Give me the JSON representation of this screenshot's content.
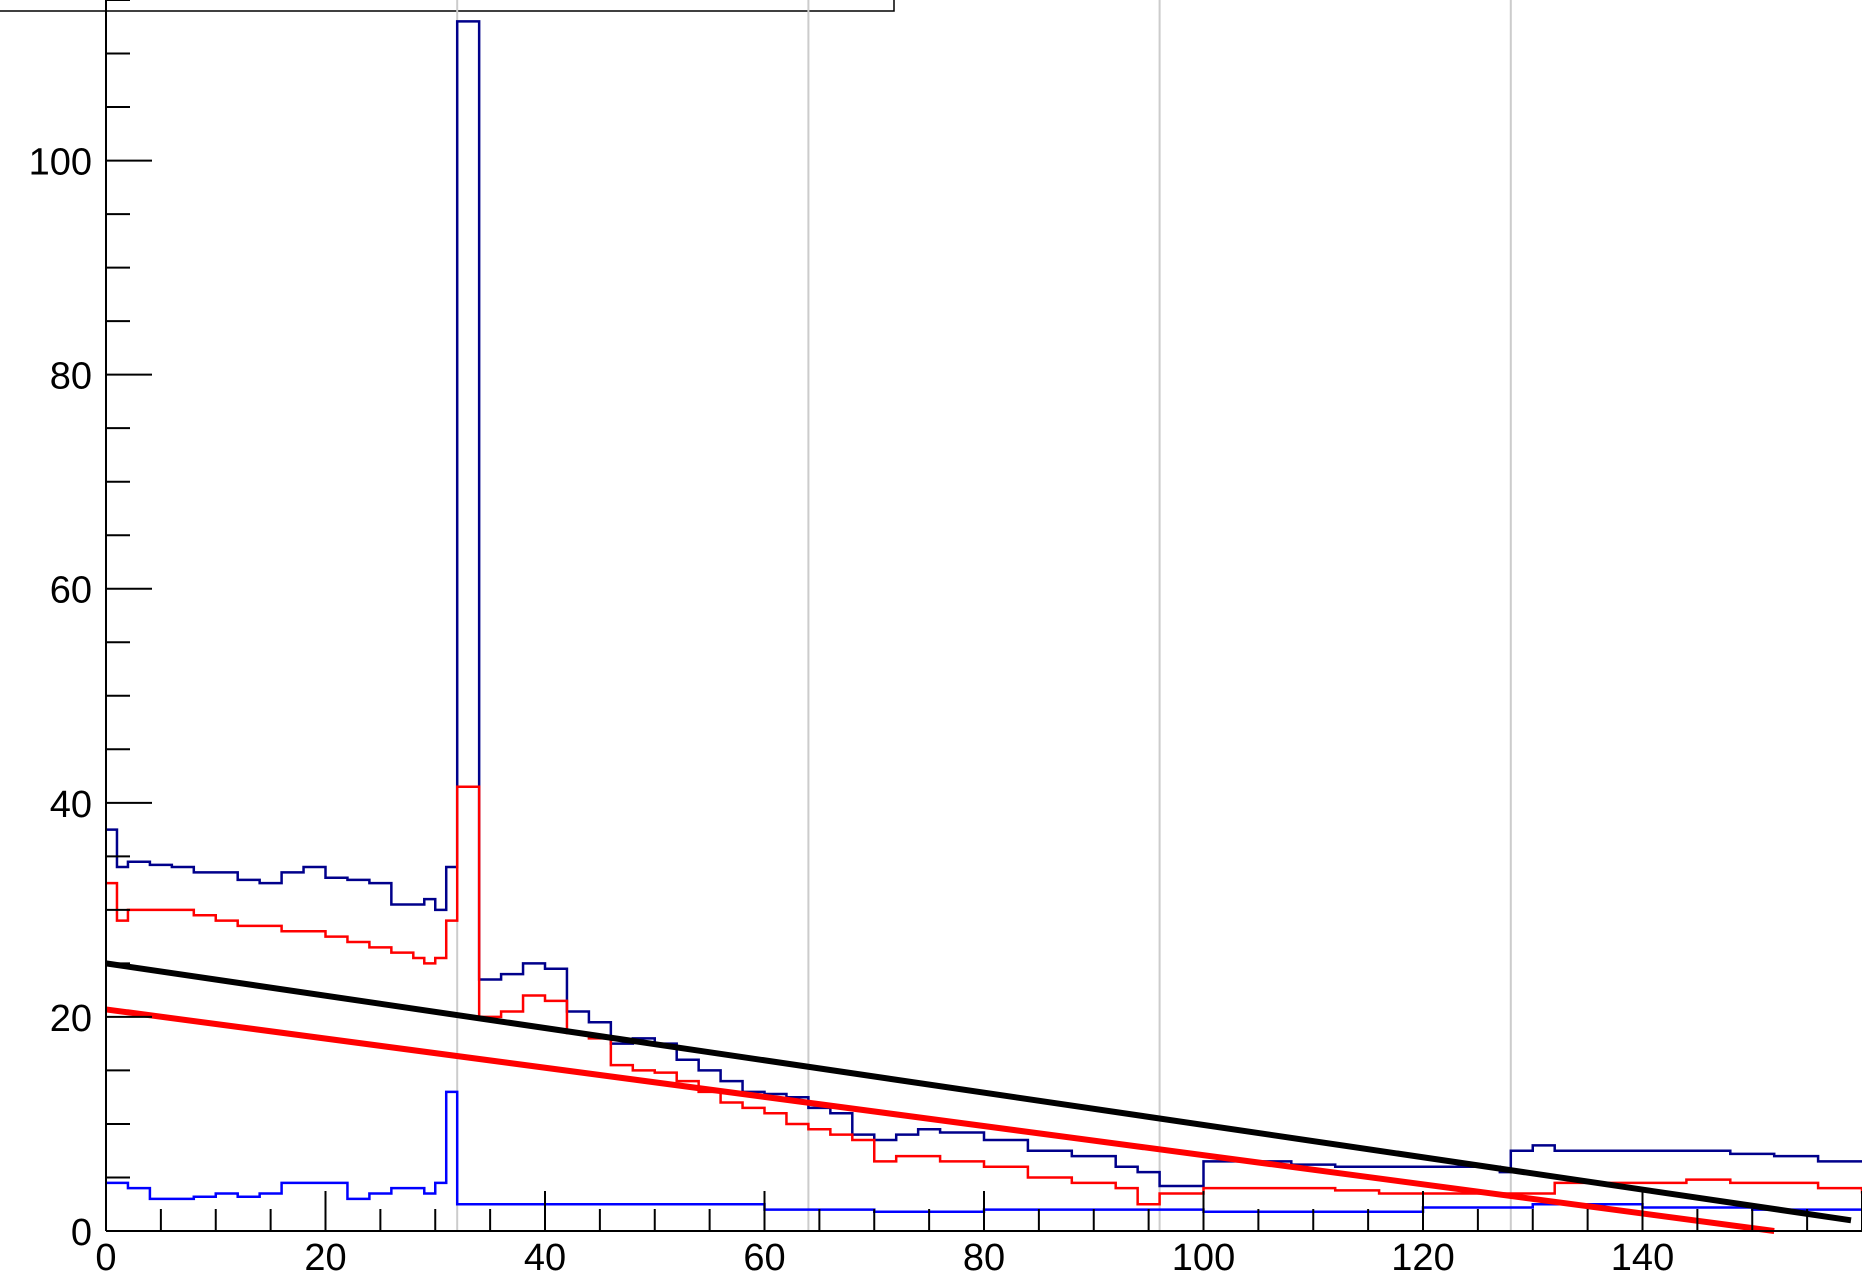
{
  "chart_data": {
    "type": "line",
    "title": "",
    "xlabel": "",
    "ylabel": "",
    "xlim": [
      0,
      160
    ],
    "ylim": [
      0,
      115
    ],
    "x_ticks": [
      0,
      20,
      40,
      60,
      80,
      100,
      120,
      140
    ],
    "x_tick_labels": [
      "0",
      "20",
      "40",
      "60",
      "80",
      "100",
      "120",
      "140"
    ],
    "y_ticks": [
      0,
      20,
      40,
      60,
      80,
      100
    ],
    "y_tick_labels": [
      "0",
      "20",
      "40",
      "60",
      "80",
      "100"
    ],
    "vertical_gridlines": [
      32,
      64,
      96,
      128
    ],
    "colors": {
      "dark_blue": "#00008b",
      "blue": "#0000ff",
      "red": "#ff0000",
      "black": "#000000",
      "grid": "#cccccc"
    },
    "series": [
      {
        "style": "step",
        "color": "#00008b",
        "x": [
          0,
          1,
          2,
          4,
          6,
          8,
          10,
          12,
          14,
          16,
          18,
          20,
          22,
          24,
          26,
          28,
          29,
          30,
          31,
          32,
          34,
          36,
          38,
          40,
          42,
          44,
          46,
          48,
          50,
          52,
          54,
          56,
          58,
          60,
          62,
          64,
          66,
          68,
          70,
          72,
          74,
          76,
          80,
          84,
          88,
          92,
          94,
          96,
          100,
          104,
          108,
          112,
          116,
          120,
          124,
          127,
          128,
          130,
          132,
          136,
          140,
          144,
          148,
          152,
          156,
          160
        ],
        "y": [
          37.5,
          34,
          34.5,
          34.2,
          34,
          33.5,
          33.5,
          32.8,
          32.5,
          33.5,
          34,
          33,
          32.8,
          32.5,
          30.5,
          30.5,
          31,
          30,
          34,
          113,
          23.5,
          24,
          25,
          24.5,
          20.5,
          19.5,
          17.5,
          18,
          17.5,
          16,
          15,
          14,
          13,
          12.8,
          12.5,
          11.5,
          11,
          9,
          8.5,
          9,
          9.5,
          9.2,
          8.5,
          7.5,
          7,
          6,
          5.5,
          4.2,
          6.5,
          6.5,
          6.2,
          6,
          6,
          6,
          6,
          5.5,
          7.5,
          8,
          7.5,
          7.5,
          7.5,
          7.5,
          7.2,
          7,
          6.5,
          6.5
        ]
      },
      {
        "style": "step",
        "color": "#ff0000",
        "x": [
          0,
          1,
          2,
          4,
          6,
          8,
          10,
          12,
          14,
          16,
          18,
          20,
          22,
          24,
          26,
          28,
          29,
          30,
          31,
          32,
          34,
          36,
          38,
          40,
          42,
          44,
          46,
          48,
          50,
          52,
          54,
          56,
          58,
          60,
          62,
          64,
          66,
          68,
          70,
          72,
          74,
          76,
          80,
          84,
          88,
          92,
          94,
          96,
          100,
          104,
          108,
          112,
          116,
          120,
          124,
          128,
          132,
          136,
          140,
          144,
          148,
          152,
          156,
          160
        ],
        "y": [
          32.5,
          29,
          30,
          30,
          30,
          29.5,
          29,
          28.5,
          28.5,
          28,
          28,
          27.5,
          27,
          26.5,
          26,
          25.5,
          25,
          25.5,
          29,
          41.5,
          20,
          20.5,
          22,
          21.5,
          18.5,
          18,
          15.5,
          15,
          14.8,
          14,
          13,
          12,
          11.5,
          11,
          10,
          9.5,
          9,
          8.5,
          6.5,
          7,
          7,
          6.5,
          6,
          5,
          4.5,
          4,
          2.5,
          3.5,
          4,
          4,
          4,
          3.8,
          3.5,
          3.5,
          3.5,
          3.5,
          4.5,
          4.5,
          4.5,
          4.8,
          4.5,
          4.5,
          4,
          3.5
        ]
      },
      {
        "style": "step",
        "color": "#0000ff",
        "x": [
          0,
          2,
          4,
          6,
          8,
          10,
          12,
          14,
          16,
          18,
          20,
          22,
          24,
          26,
          28,
          29,
          30,
          31,
          32,
          40,
          60,
          70,
          80,
          90,
          100,
          120,
          130,
          140,
          150,
          160
        ],
        "y": [
          4.5,
          4,
          3,
          3,
          3.2,
          3.5,
          3.2,
          3.5,
          4.5,
          4.5,
          4.5,
          3,
          3.5,
          4,
          4,
          3.5,
          4.5,
          13,
          2.5,
          2.5,
          2,
          1.8,
          2,
          2,
          1.8,
          2.2,
          2.5,
          2.2,
          2,
          2
        ]
      },
      {
        "style": "line",
        "color": "#000000",
        "x": [
          0,
          159
        ],
        "y": [
          25,
          1
        ]
      },
      {
        "style": "line",
        "color": "#ff0000",
        "x": [
          0,
          152
        ],
        "y": [
          20.7,
          0
        ]
      }
    ]
  }
}
